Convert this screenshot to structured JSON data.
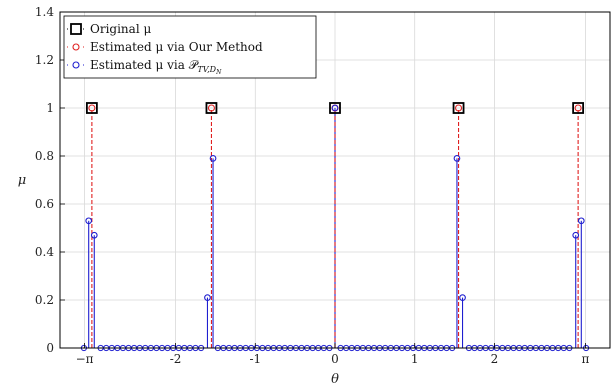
{
  "chart_data": {
    "type": "scatter",
    "xlabel": "θ",
    "ylabel": "μ",
    "xlim": [
      -3.45,
      3.45
    ],
    "ylim": [
      0,
      1.4
    ],
    "grid": true,
    "legend_position": "top-left",
    "x_ticks": [
      {
        "value": -3.14159,
        "label": "−π"
      },
      {
        "value": -2,
        "label": "-2"
      },
      {
        "value": -1,
        "label": "-1"
      },
      {
        "value": 0,
        "label": "0"
      },
      {
        "value": 1,
        "label": "1"
      },
      {
        "value": 2,
        "label": "2"
      },
      {
        "value": 3.14159,
        "label": "π"
      }
    ],
    "y_ticks": [
      {
        "value": 0,
        "label": "0"
      },
      {
        "value": 0.2,
        "label": "0.2"
      },
      {
        "value": 0.4,
        "label": "0.4"
      },
      {
        "value": 0.6,
        "label": "0.6"
      },
      {
        "value": 0.8,
        "label": "0.8"
      },
      {
        "value": 1,
        "label": "1"
      },
      {
        "value": 1.2,
        "label": "1.2"
      },
      {
        "value": 1.4,
        "label": "1.4"
      }
    ],
    "legend": [
      {
        "label": "Original μ",
        "marker": "square",
        "color": "#000000"
      },
      {
        "label": "Estimated μ via Our Method",
        "marker": "circle",
        "color": "#e02020"
      },
      {
        "label": "Estimated μ via 𝒫",
        "subscript": "TV,D",
        "subsub": "N",
        "marker": "circle",
        "color": "#1f1fd0"
      }
    ],
    "series": [
      {
        "marker": "square",
        "color": "#000000",
        "points": [
          [
            -3.05,
            1
          ],
          [
            -1.55,
            1
          ],
          [
            0,
            1
          ],
          [
            1.55,
            1
          ],
          [
            3.05,
            1
          ]
        ]
      },
      {
        "marker": "circle",
        "color": "#e02020",
        "points": [
          [
            -3.05,
            1
          ],
          [
            -1.55,
            1
          ],
          [
            0,
            1
          ],
          [
            1.55,
            1
          ],
          [
            3.05,
            1
          ]
        ]
      },
      {
        "marker": "circle",
        "color": "#1f1fd0",
        "baseline_start": -3.15,
        "baseline_end": 3.15,
        "baseline_count": 91,
        "points": [
          [
            -3.09,
            0.53
          ],
          [
            -3.02,
            0.47
          ],
          [
            -1.6,
            0.21
          ],
          [
            -1.53,
            0.79
          ],
          [
            0.0,
            1.0
          ],
          [
            1.53,
            0.79
          ],
          [
            1.6,
            0.21
          ],
          [
            3.02,
            0.47
          ],
          [
            3.09,
            0.53
          ]
        ]
      }
    ],
    "colors": {
      "grid": "#d9d9d9",
      "baseline": "#000000",
      "red_stem": "#e02020",
      "blue_stem": "#1f1fd0"
    }
  }
}
